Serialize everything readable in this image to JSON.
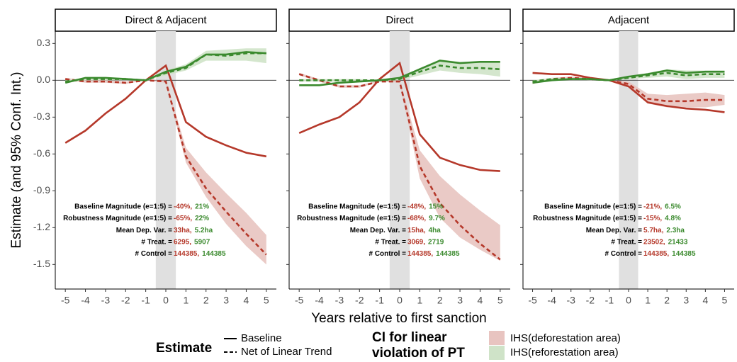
{
  "ylabel": "Estimate (and 95% Conf. Int.)",
  "xlabel": "Years relative to first sanction",
  "legend": {
    "linetype_title": "Estimate",
    "linetypes": [
      "Baseline",
      "Net of Linear Trend"
    ],
    "fill_title": [
      "CI for linear",
      "violation of PT"
    ],
    "fills": [
      {
        "label": "IHS(deforestation area)",
        "color": "#e8c4c0"
      },
      {
        "label": "IHS(reforestation area)",
        "color": "#cfe3c8"
      }
    ]
  },
  "chart_data": [
    {
      "type": "line",
      "title": "Direct & Adjacent",
      "x": [
        -5,
        -4,
        -3,
        -2,
        -1,
        0,
        1,
        2,
        3,
        4,
        5
      ],
      "xlim": [
        -5.5,
        5.5
      ],
      "xticks": [
        -5,
        -4,
        -3,
        -2,
        -1,
        0,
        1,
        2,
        3,
        4,
        5
      ],
      "ylim": [
        -1.7,
        0.4
      ],
      "yticks": [
        0.3,
        {
          "value": 0,
          "label": "0.0"
        },
        -0.3,
        -0.6,
        -0.9,
        -1.2,
        -1.5
      ],
      "hline": 0,
      "highlight": [
        -0.5,
        0.5
      ],
      "bands": [
        {
          "color": "#e8c4c0",
          "lower": [
            0,
            -0.02,
            -0.02,
            -0.03,
            0,
            -0.02,
            -0.67,
            -0.95,
            -1.17,
            -1.35,
            -1.5
          ],
          "upper": [
            0.02,
            0,
            0,
            -0.01,
            0,
            0,
            -0.55,
            -0.75,
            -0.92,
            -1.08,
            -1.26
          ]
        },
        {
          "color": "#cfe3c8",
          "lower": [
            -0.02,
            0,
            0,
            0,
            0,
            0.04,
            0.08,
            0.16,
            0.16,
            0.16,
            0.14
          ],
          "upper": [
            0,
            0.02,
            0.02,
            0.02,
            0,
            0.08,
            0.13,
            0.24,
            0.25,
            0.26,
            0.26
          ]
        }
      ],
      "series": [
        {
          "color": "#b5382a",
          "dash": false,
          "values": [
            -0.51,
            -0.41,
            -0.27,
            -0.15,
            0,
            0.12,
            -0.34,
            -0.46,
            -0.53,
            -0.59,
            -0.62
          ]
        },
        {
          "color": "#b5382a",
          "dash": true,
          "values": [
            0.01,
            -0.01,
            -0.01,
            -0.02,
            0,
            -0.01,
            -0.62,
            -0.88,
            -1.07,
            -1.25,
            -1.42
          ]
        },
        {
          "color": "#3b8a2e",
          "dash": false,
          "values": [
            -0.02,
            0.02,
            0.02,
            0.01,
            0,
            0.07,
            0.11,
            0.21,
            0.21,
            0.23,
            0.22
          ]
        },
        {
          "color": "#3b8a2e",
          "dash": true,
          "values": [
            -0.01,
            0.01,
            0.01,
            0.01,
            0,
            0.06,
            0.1,
            0.21,
            0.2,
            0.22,
            0.22
          ]
        }
      ],
      "stats": [
        {
          "label": "Baseline Magnitude (e=1:5) =",
          "defor": "-40%,",
          "refor": "21%"
        },
        {
          "label": "Robustness Magnitude (e=1:5) =",
          "defor": "-65%,",
          "refor": "22%"
        },
        {
          "label": "Mean Dep. Var. =",
          "defor": "33ha,",
          "refor": "5.2ha"
        },
        {
          "label": "# Treat. =",
          "defor": "6295,",
          "refor": "5907"
        },
        {
          "label": "# Control =",
          "defor": "144385,",
          "refor": "144385"
        }
      ]
    },
    {
      "type": "line",
      "title": "Direct",
      "x": [
        -5,
        -4,
        -3,
        -2,
        -1,
        0,
        1,
        2,
        3,
        4,
        5
      ],
      "xlim": [
        -5.5,
        5.5
      ],
      "xticks": [
        -5,
        -4,
        -3,
        -2,
        -1,
        0,
        1,
        2,
        3,
        4,
        5
      ],
      "ylim": [
        -1.7,
        0.4
      ],
      "hline": 0,
      "highlight": [
        -0.5,
        0.5
      ],
      "bands": [
        {
          "color": "#e8c4c0",
          "lower": [
            0.04,
            -0.01,
            -0.06,
            -0.06,
            -0.01,
            -0.02,
            -0.8,
            -1.12,
            -1.28,
            -1.38,
            -1.47
          ],
          "upper": [
            0.06,
            0.01,
            -0.04,
            -0.04,
            0,
            0,
            -0.57,
            -0.78,
            -0.93,
            -1.06,
            -1.18
          ]
        },
        {
          "color": "#cfe3c8",
          "lower": [
            -0.01,
            -0.01,
            -0.01,
            -0.01,
            0,
            0,
            0.04,
            0.08,
            0.06,
            0.05,
            0.03
          ],
          "upper": [
            0.01,
            0.01,
            0.01,
            0.01,
            0,
            0.02,
            0.1,
            0.17,
            0.15,
            0.15,
            0.15
          ]
        }
      ],
      "series": [
        {
          "color": "#b5382a",
          "dash": false,
          "values": [
            -0.43,
            -0.36,
            -0.3,
            -0.18,
            0.01,
            0.14,
            -0.44,
            -0.63,
            -0.69,
            -0.73,
            -0.74
          ]
        },
        {
          "color": "#b5382a",
          "dash": true,
          "values": [
            0.05,
            0,
            -0.05,
            -0.05,
            -0.01,
            -0.01,
            -0.7,
            -1,
            -1.18,
            -1.33,
            -1.46
          ]
        },
        {
          "color": "#3b8a2e",
          "dash": false,
          "values": [
            -0.04,
            -0.04,
            -0.02,
            -0.01,
            0,
            0.02,
            0.09,
            0.16,
            0.14,
            0.15,
            0.15
          ]
        },
        {
          "color": "#3b8a2e",
          "dash": true,
          "values": [
            0,
            0,
            0,
            0,
            0,
            0.01,
            0.07,
            0.12,
            0.1,
            0.1,
            0.09
          ]
        }
      ],
      "stats": [
        {
          "label": "Baseline Magnitude (e=1:5) =",
          "defor": "-48%,",
          "refor": "15%"
        },
        {
          "label": "Robustness Magnitude (e=1:5) =",
          "defor": "-68%,",
          "refor": "9.7%"
        },
        {
          "label": "Mean Dep. Var. =",
          "defor": "15ha,",
          "refor": "4ha"
        },
        {
          "label": "# Treat. =",
          "defor": "3069,",
          "refor": "2719"
        },
        {
          "label": "# Control =",
          "defor": "144385,",
          "refor": "144385"
        }
      ]
    },
    {
      "type": "line",
      "title": "Adjacent",
      "x": [
        -5,
        -4,
        -3,
        -2,
        -1,
        0,
        1,
        2,
        3,
        4,
        5
      ],
      "xlim": [
        -5.5,
        5.5
      ],
      "xticks": [
        -5,
        -4,
        -3,
        -2,
        -1,
        0,
        1,
        2,
        3,
        4,
        5
      ],
      "ylim": [
        -1.7,
        0.4
      ],
      "hline": 0,
      "highlight": [
        -0.5,
        0.5
      ],
      "bands": [
        {
          "color": "#e8c4c0",
          "lower": [
            -0.03,
            0,
            0.01,
            0,
            0,
            -0.05,
            -0.19,
            -0.22,
            -0.22,
            -0.22,
            -0.2
          ],
          "upper": [
            -0.01,
            0.02,
            0.03,
            0.02,
            0,
            -0.01,
            -0.11,
            -0.12,
            -0.11,
            -0.1,
            -0.12
          ]
        },
        {
          "color": "#cfe3c8",
          "lower": [
            -0.02,
            0,
            0,
            0,
            0,
            0.01,
            0.02,
            0.03,
            0.01,
            0.02,
            0.02
          ],
          "upper": [
            0,
            0.02,
            0.02,
            0.02,
            0,
            0.03,
            0.06,
            0.09,
            0.08,
            0.08,
            0.08
          ]
        }
      ],
      "series": [
        {
          "color": "#b5382a",
          "dash": false,
          "values": [
            0.06,
            0.05,
            0.05,
            0.02,
            0,
            -0.05,
            -0.18,
            -0.21,
            -0.23,
            -0.24,
            -0.26
          ]
        },
        {
          "color": "#b5382a",
          "dash": true,
          "values": [
            -0.02,
            0.01,
            0.02,
            0.01,
            0,
            -0.03,
            -0.15,
            -0.17,
            -0.17,
            -0.16,
            -0.16
          ]
        },
        {
          "color": "#3b8a2e",
          "dash": false,
          "values": [
            -0.02,
            0,
            0.01,
            0.01,
            0,
            0.03,
            0.05,
            0.08,
            0.06,
            0.07,
            0.07
          ]
        },
        {
          "color": "#3b8a2e",
          "dash": true,
          "values": [
            -0.01,
            0.01,
            0.01,
            0.01,
            0,
            0.02,
            0.04,
            0.06,
            0.04,
            0.05,
            0.05
          ]
        }
      ],
      "stats": [
        {
          "label": "Baseline Magnitude (e=1:5) =",
          "defor": "-21%,",
          "refor": "6.5%"
        },
        {
          "label": "Robustness Magnitude (e=1:5) =",
          "defor": "-15%,",
          "refor": "4.8%"
        },
        {
          "label": "Mean Dep. Var. =",
          "defor": "5.7ha,",
          "refor": "2.3ha"
        },
        {
          "label": "# Treat. =",
          "defor": "23502,",
          "refor": "21433"
        },
        {
          "label": "# Control =",
          "defor": "144385,",
          "refor": "144385"
        }
      ]
    }
  ]
}
